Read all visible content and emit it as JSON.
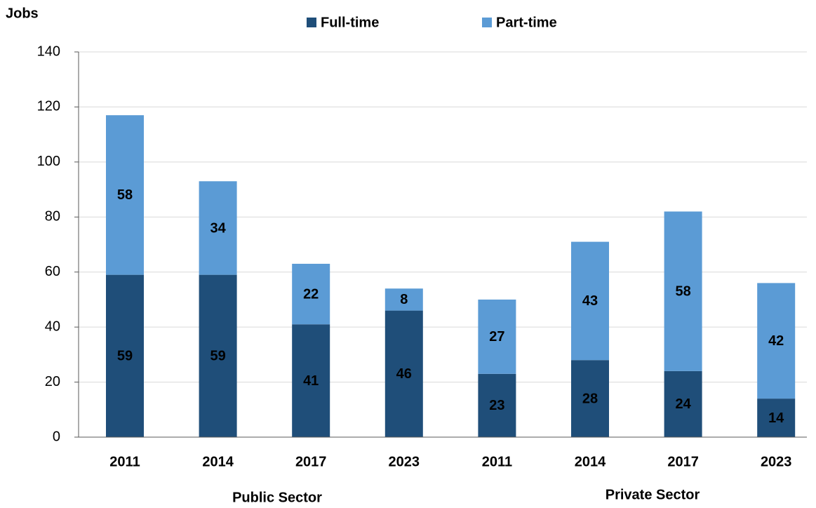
{
  "chart_data": {
    "type": "stacked_bar",
    "ylabel": "Jobs",
    "categories": [
      "2011",
      "2014",
      "2017",
      "2023",
      "2011",
      "2014",
      "2017",
      "2023"
    ],
    "group_labels": [
      "Public Sector",
      "Private Sector"
    ],
    "series": [
      {
        "name": "Full-time",
        "color": "#1f4e79",
        "values": [
          59,
          59,
          41,
          46,
          23,
          28,
          24,
          14
        ]
      },
      {
        "name": "Part-time",
        "color": "#5b9bd5",
        "values": [
          58,
          34,
          22,
          8,
          27,
          43,
          58,
          42
        ]
      }
    ],
    "ylim": [
      0,
      140
    ],
    "yticks": [
      0,
      20,
      40,
      60,
      80,
      100,
      120,
      140
    ],
    "grid": true
  }
}
